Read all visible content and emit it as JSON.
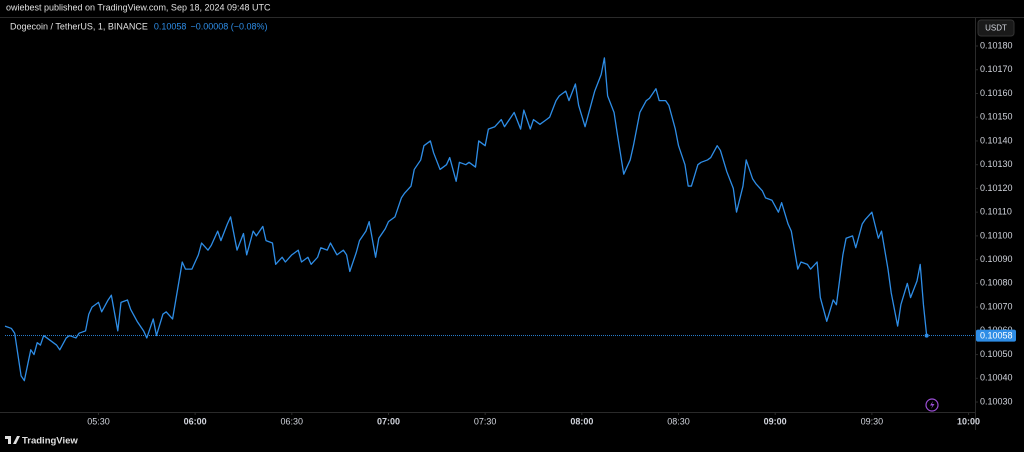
{
  "publisher": "owiebest published on TradingView.com, Sep 18, 2024 09:48 UTC",
  "brand": "TradingView",
  "chart_data": {
    "type": "line",
    "title": "Dogecoin / TetherUS, 1, BINANCE",
    "last_price": 0.10058,
    "change": "−0.00008 (−0.08%)",
    "currency": "USDT",
    "color": "#2e8de6",
    "grid": false,
    "xlim": [
      "05:01",
      "10:02"
    ],
    "xticks": [
      "05:30",
      "06:00",
      "06:30",
      "07:00",
      "07:30",
      "08:00",
      "08:30",
      "09:00",
      "09:30",
      "10:00"
    ],
    "ylim": [
      0.100258,
      0.101918
    ],
    "yticks": [
      {
        "value": 0.1003,
        "label": "0.10030"
      },
      {
        "value": 0.1004,
        "label": "0.10040"
      },
      {
        "value": 0.1005,
        "label": "0.10050"
      },
      {
        "value": 0.1006,
        "label": "0.10060"
      },
      {
        "value": 0.1007,
        "label": "0.10070"
      },
      {
        "value": 0.1008,
        "label": "0.10080"
      },
      {
        "value": 0.1009,
        "label": "0.10090"
      },
      {
        "value": 0.101,
        "label": "0.10100"
      },
      {
        "value": 0.1011,
        "label": "0.10110"
      },
      {
        "value": 0.1012,
        "label": "0.10120"
      },
      {
        "value": 0.1013,
        "label": "0.10130"
      },
      {
        "value": 0.1014,
        "label": "0.10140"
      },
      {
        "value": 0.1015,
        "label": "0.10150"
      },
      {
        "value": 0.1016,
        "label": "0.10160"
      },
      {
        "value": 0.1017,
        "label": "0.10170"
      },
      {
        "value": 0.1018,
        "label": "0.10180"
      }
    ],
    "x": [
      "05:01",
      "05:03",
      "05:04",
      "05:06",
      "05:07",
      "05:09",
      "05:10",
      "05:11",
      "05:12",
      "05:13",
      "05:15",
      "05:17",
      "05:18",
      "05:20",
      "05:21",
      "05:23",
      "05:24",
      "05:26",
      "05:27",
      "05:28",
      "05:30",
      "05:31",
      "05:33",
      "05:34",
      "05:36",
      "05:37",
      "05:39",
      "05:40",
      "05:42",
      "05:44",
      "05:45",
      "05:47",
      "05:48",
      "05:50",
      "05:51",
      "05:53",
      "05:54",
      "05:56",
      "05:57",
      "05:59",
      "06:01",
      "06:02",
      "06:04",
      "06:05",
      "06:07",
      "06:08",
      "06:10",
      "06:11",
      "06:13",
      "06:15",
      "06:16",
      "06:18",
      "06:19",
      "06:21",
      "06:22",
      "06:24",
      "06:25",
      "06:27",
      "06:28",
      "06:30",
      "06:32",
      "06:33",
      "06:35",
      "06:36",
      "06:38",
      "06:39",
      "06:41",
      "06:42",
      "06:44",
      "06:46",
      "06:47",
      "06:48",
      "06:50",
      "06:51",
      "06:53",
      "06:54",
      "06:56",
      "06:57",
      "06:59",
      "07:00",
      "07:02",
      "07:04",
      "07:05",
      "07:07",
      "07:08",
      "07:10",
      "07:11",
      "07:13",
      "07:14",
      "07:16",
      "07:18",
      "07:19",
      "07:21",
      "07:22",
      "07:24",
      "07:25",
      "07:27",
      "07:28",
      "07:30",
      "07:31",
      "07:33",
      "07:35",
      "07:36",
      "07:38",
      "07:39",
      "07:41",
      "07:42",
      "07:44",
      "07:45",
      "07:47",
      "07:49",
      "07:50",
      "07:52",
      "07:53",
      "07:55",
      "07:56",
      "07:58",
      "07:59",
      "08:01",
      "08:03",
      "08:04",
      "08:06",
      "08:07",
      "08:08",
      "08:10",
      "08:11",
      "08:13",
      "08:15",
      "08:16",
      "08:18",
      "08:20",
      "08:21",
      "08:23",
      "08:24",
      "08:26",
      "08:27",
      "08:29",
      "08:30",
      "08:32",
      "08:33",
      "08:34",
      "08:36",
      "08:37",
      "08:39",
      "08:40",
      "08:42",
      "08:43",
      "08:45",
      "08:47",
      "08:48",
      "08:50",
      "08:51",
      "08:53",
      "08:54",
      "08:56",
      "08:57",
      "08:59",
      "09:01",
      "09:02",
      "09:04",
      "09:05",
      "09:07",
      "09:08",
      "09:10",
      "09:11",
      "09:13",
      "09:14",
      "09:16",
      "09:18",
      "09:19",
      "09:21",
      "09:22",
      "09:24",
      "09:25",
      "09:27",
      "09:28",
      "09:30",
      "09:32",
      "09:33",
      "09:35",
      "09:36",
      "09:38",
      "09:39",
      "09:41",
      "09:42",
      "09:44",
      "09:45",
      "09:46",
      "09:47"
    ],
    "values": [
      0.10062,
      0.10061,
      0.10059,
      0.10041,
      0.10039,
      0.10052,
      0.1005,
      0.10055,
      0.10054,
      0.10058,
      0.10056,
      0.10054,
      0.10052,
      0.10057,
      0.10058,
      0.10057,
      0.10059,
      0.1006,
      0.10067,
      0.1007,
      0.10072,
      0.10068,
      0.10073,
      0.10075,
      0.1006,
      0.10072,
      0.10073,
      0.10069,
      0.10064,
      0.1006,
      0.10057,
      0.10065,
      0.10058,
      0.10067,
      0.10068,
      0.10065,
      0.10073,
      0.10089,
      0.10086,
      0.10086,
      0.10092,
      0.10097,
      0.10094,
      0.10096,
      0.10102,
      0.10098,
      0.10105,
      0.10108,
      0.10094,
      0.10101,
      0.10092,
      0.10102,
      0.101,
      0.10104,
      0.10098,
      0.10097,
      0.10088,
      0.10091,
      0.10089,
      0.10092,
      0.10094,
      0.10089,
      0.10091,
      0.10088,
      0.10091,
      0.10095,
      0.10094,
      0.10097,
      0.10092,
      0.10094,
      0.10092,
      0.10085,
      0.10093,
      0.10098,
      0.10102,
      0.10106,
      0.10091,
      0.10099,
      0.10103,
      0.10106,
      0.10108,
      0.10116,
      0.10118,
      0.10121,
      0.10128,
      0.10132,
      0.10138,
      0.1014,
      0.10135,
      0.10128,
      0.1013,
      0.10133,
      0.10123,
      0.10131,
      0.1013,
      0.10131,
      0.10129,
      0.1014,
      0.10138,
      0.10145,
      0.10146,
      0.10149,
      0.10146,
      0.1015,
      0.10152,
      0.10145,
      0.10153,
      0.10145,
      0.10149,
      0.10147,
      0.10149,
      0.1015,
      0.10157,
      0.10159,
      0.10161,
      0.10157,
      0.10164,
      0.10155,
      0.10146,
      0.10156,
      0.10161,
      0.10168,
      0.10175,
      0.10159,
      0.10152,
      0.10143,
      0.10126,
      0.10132,
      0.10138,
      0.10152,
      0.10157,
      0.10158,
      0.10162,
      0.10157,
      0.10157,
      0.10155,
      0.10145,
      0.10138,
      0.1013,
      0.10121,
      0.10121,
      0.1013,
      0.10131,
      0.10132,
      0.10133,
      0.10138,
      0.10136,
      0.10127,
      0.1012,
      0.1011,
      0.10121,
      0.10132,
      0.10124,
      0.10122,
      0.10119,
      0.10116,
      0.10115,
      0.1011,
      0.10114,
      0.10105,
      0.10102,
      0.10086,
      0.10089,
      0.10088,
      0.10086,
      0.10089,
      0.10074,
      0.10064,
      0.10073,
      0.10071,
      0.10092,
      0.10099,
      0.101,
      0.10095,
      0.10105,
      0.10107,
      0.1011,
      0.10099,
      0.10102,
      0.10086,
      0.10076,
      0.10062,
      0.10071,
      0.1008,
      0.10074,
      0.10081,
      0.10088,
      0.10071,
      0.10058
    ]
  }
}
